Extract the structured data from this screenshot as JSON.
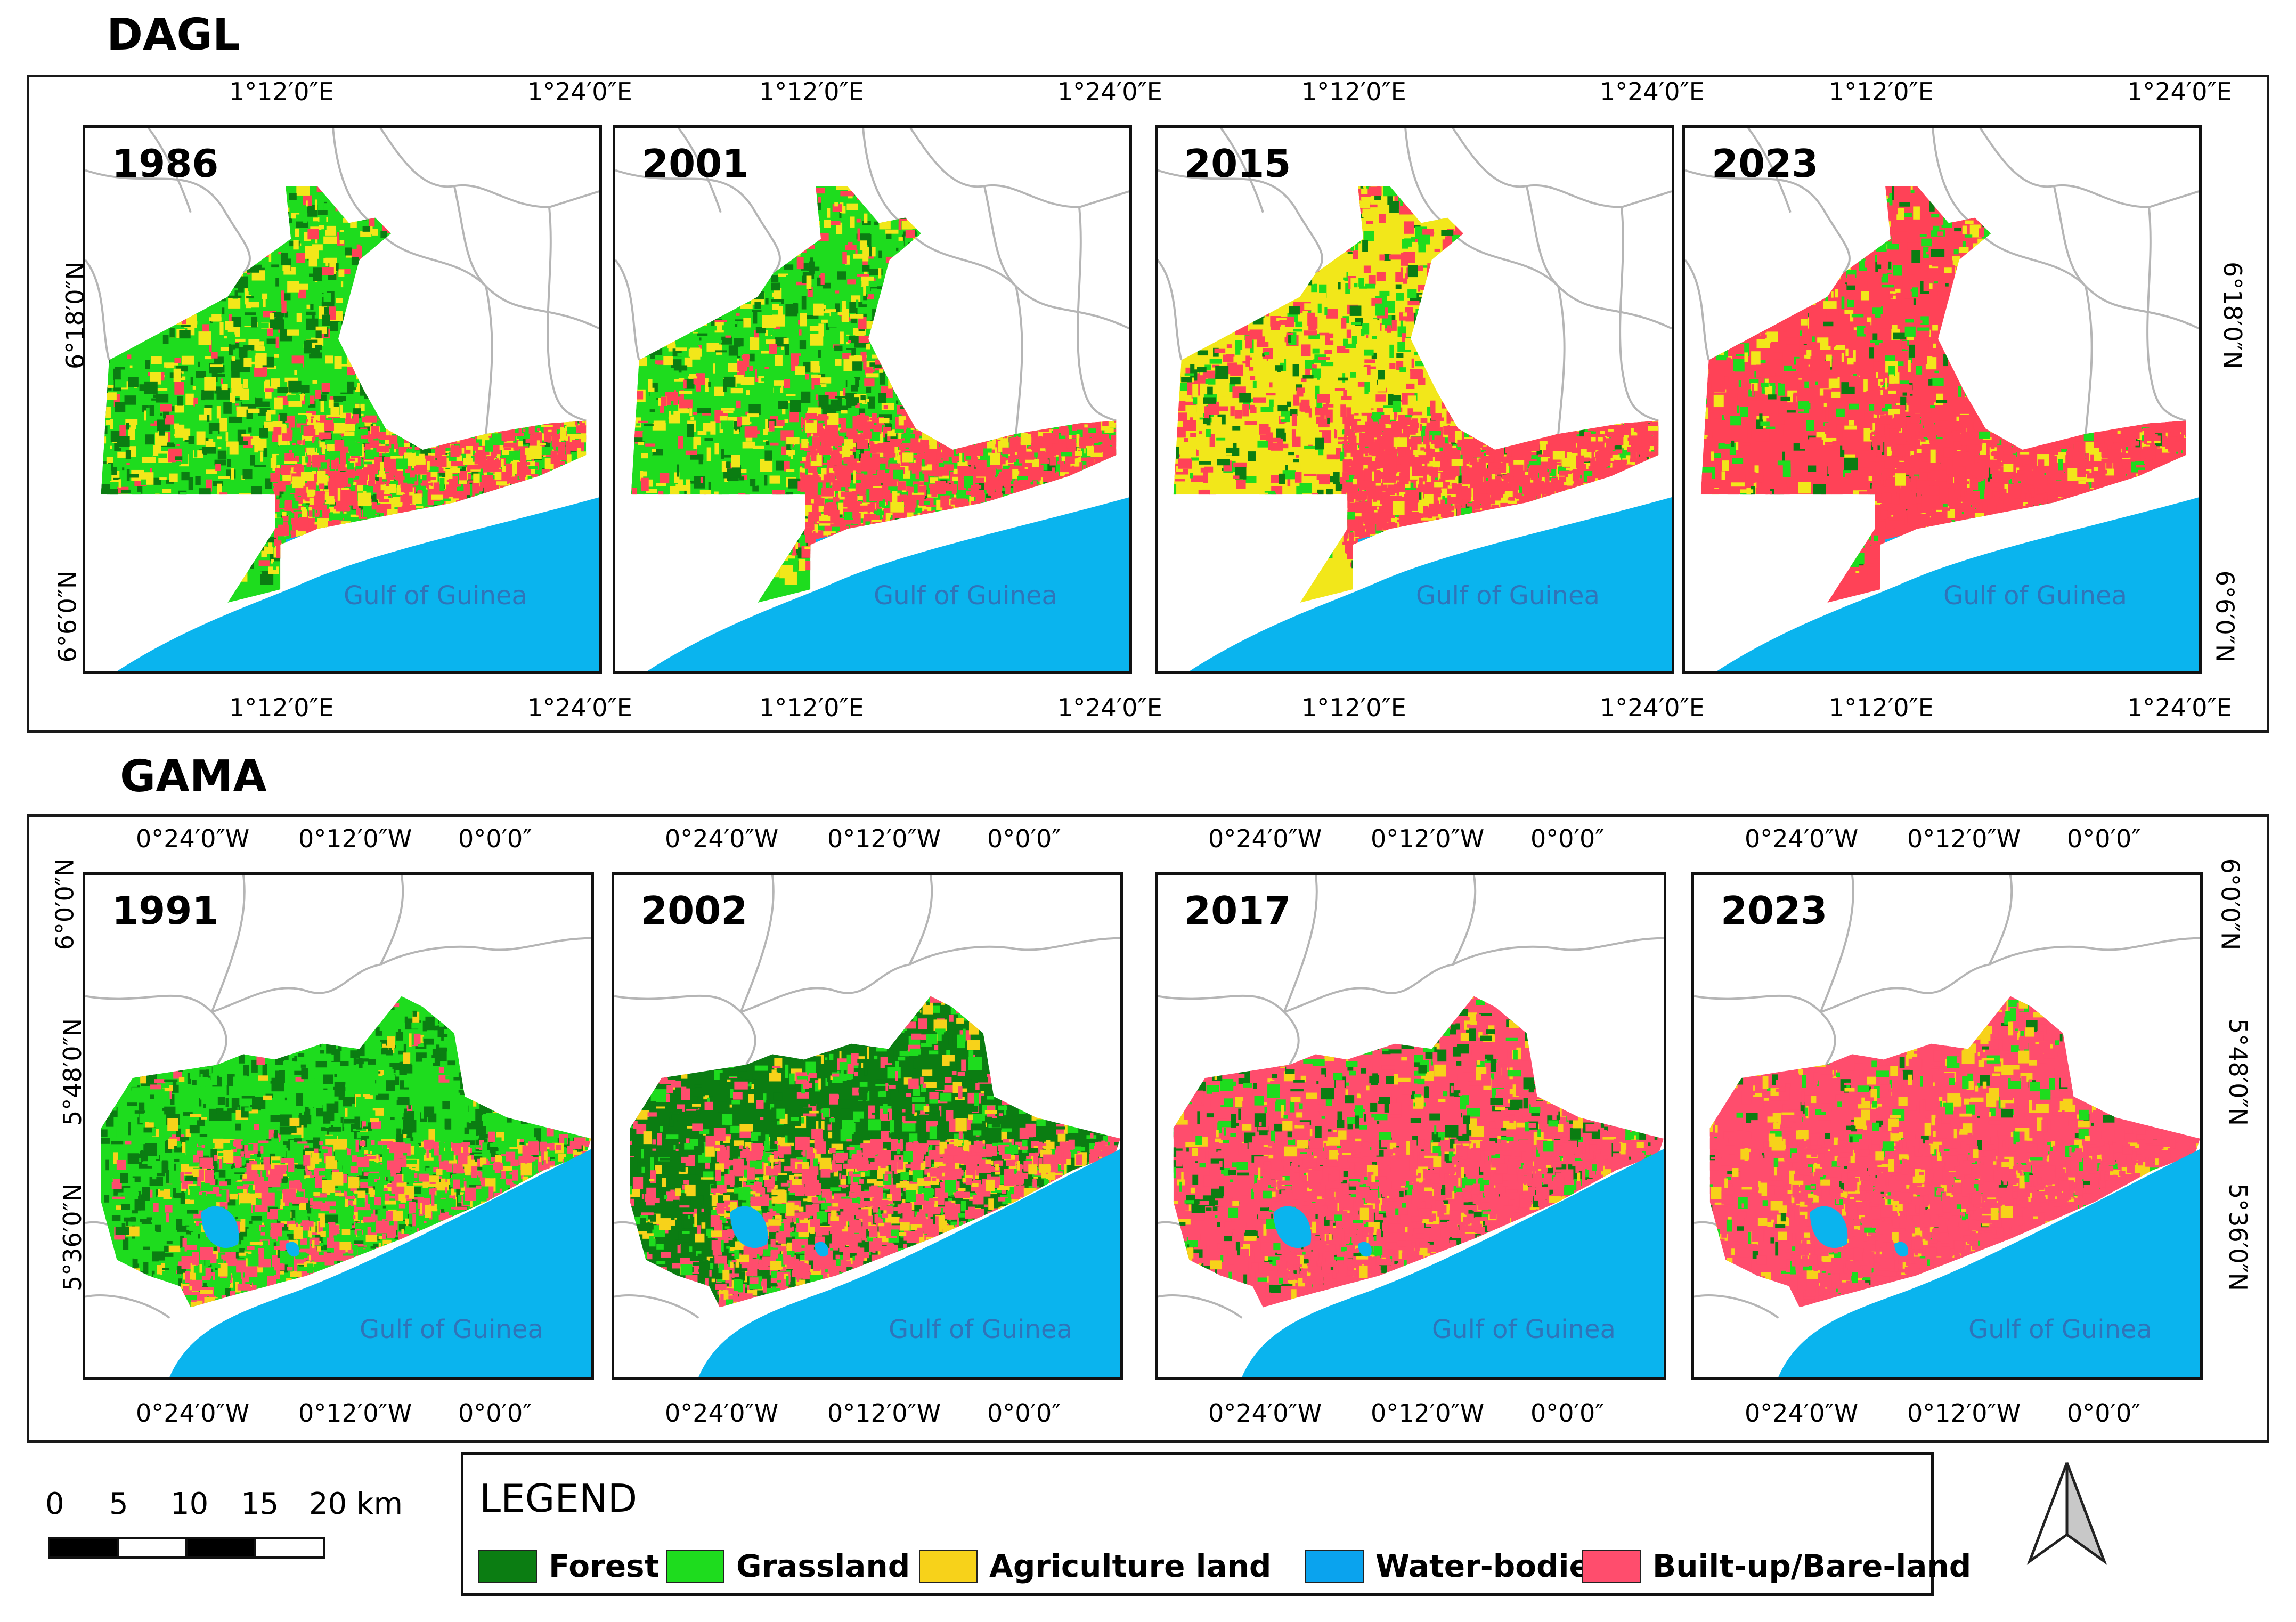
{
  "colors": {
    "forest": "#0b7d12",
    "grassland": "#1edc1e",
    "agriculture": "#f2e71a",
    "agriculture_gama": "#f7d21a",
    "water": "#0ab4ee",
    "builtup": "#ff4257",
    "builtup_gama": "#ff4d6d",
    "sea_label": "#2f74b9",
    "boundary": "#b5b5b5"
  },
  "dagl": {
    "title": "DAGL",
    "lon_labels": [
      "1°12′0″E",
      "1°24′0″E"
    ],
    "lat_labels": [
      "6°18′0″N",
      "6°6′0″N"
    ],
    "panels": [
      {
        "year": "1986"
      },
      {
        "year": "2001"
      },
      {
        "year": "2015"
      },
      {
        "year": "2023"
      }
    ],
    "sea_label": "Gulf of Guinea"
  },
  "gama": {
    "title": "GAMA",
    "lon_labels": [
      "0°24′0″W",
      "0°12′0″W",
      "0°0′0″"
    ],
    "lat_labels": [
      "6°0′0″N",
      "5°48′0″N",
      "5°36′0″N"
    ],
    "panels": [
      {
        "year": "1991"
      },
      {
        "year": "2002"
      },
      {
        "year": "2017"
      },
      {
        "year": "2023"
      }
    ],
    "sea_label": "Gulf of Guinea"
  },
  "scale_bar": {
    "labels": [
      "0",
      "5",
      "10",
      "15",
      "20 km"
    ]
  },
  "legend": {
    "title": "LEGEND",
    "items": [
      {
        "label": "Forest",
        "color": "#0b7d12"
      },
      {
        "label": "Grassland",
        "color": "#1edc1e"
      },
      {
        "label": "Agriculture land",
        "color": "#f7d21a"
      },
      {
        "label": "Water-bodies",
        "color": "#0aa3ee"
      },
      {
        "label": "Built-up/Bare-land",
        "color": "#ff4d6d"
      }
    ]
  },
  "north_arrow": {
    "icon": "north-arrow-icon"
  }
}
